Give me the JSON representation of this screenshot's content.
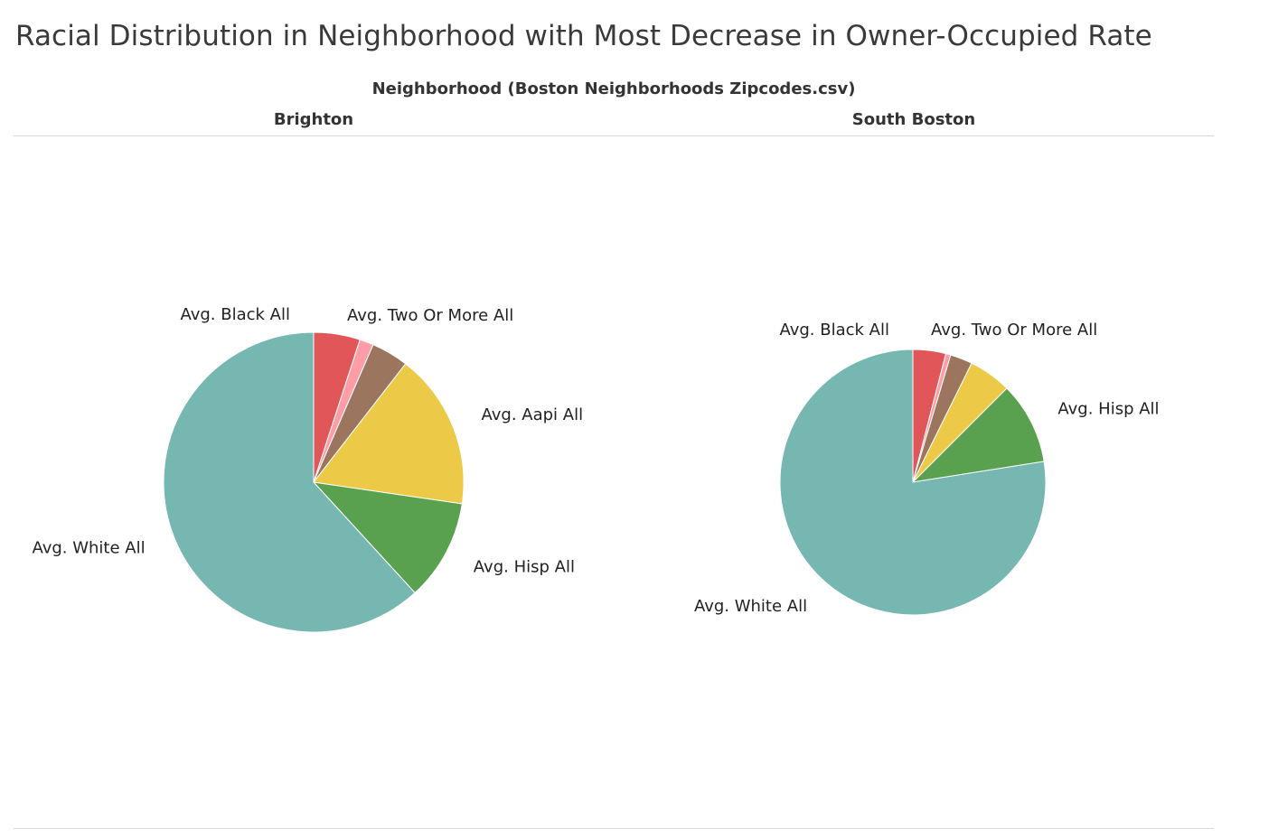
{
  "title": "Racial Distribution in Neighborhood with Most Decrease in Owner-Occupied Rate",
  "facet_label": "Neighborhood (Boston Neighborhoods Zipcodes.csv)",
  "chart_data": [
    {
      "type": "pie",
      "title": "Brighton",
      "slices": [
        {
          "label": "Avg. Black All",
          "value": 5.0,
          "color": "#e15759",
          "labeled": true
        },
        {
          "label": "",
          "value": 1.5,
          "color": "#ff9da7",
          "labeled": false
        },
        {
          "label": "Avg. Two Or More All",
          "value": 4.0,
          "color": "#9c755f",
          "labeled": true
        },
        {
          "label": "Avg. Aapi All",
          "value": 16.8,
          "color": "#edc948",
          "labeled": true
        },
        {
          "label": "Avg. Hisp All",
          "value": 10.9,
          "color": "#59a14f",
          "labeled": true
        },
        {
          "label": "Avg. White All",
          "value": 61.8,
          "color": "#76b7b2",
          "labeled": true
        }
      ]
    },
    {
      "type": "pie",
      "title": "South Boston",
      "slices": [
        {
          "label": "Avg. Black All",
          "value": 4.0,
          "color": "#e15759",
          "labeled": true
        },
        {
          "label": "",
          "value": 0.6,
          "color": "#ff9da7",
          "labeled": false
        },
        {
          "label": "Avg. Two Or More All",
          "value": 2.7,
          "color": "#9c755f",
          "labeled": true
        },
        {
          "label": "",
          "value": 5.2,
          "color": "#edc948",
          "labeled": false
        },
        {
          "label": "Avg. Hisp All",
          "value": 10.0,
          "color": "#59a14f",
          "labeled": true
        },
        {
          "label": "Avg. White All",
          "value": 77.5,
          "color": "#76b7b2",
          "labeled": true
        }
      ]
    }
  ]
}
